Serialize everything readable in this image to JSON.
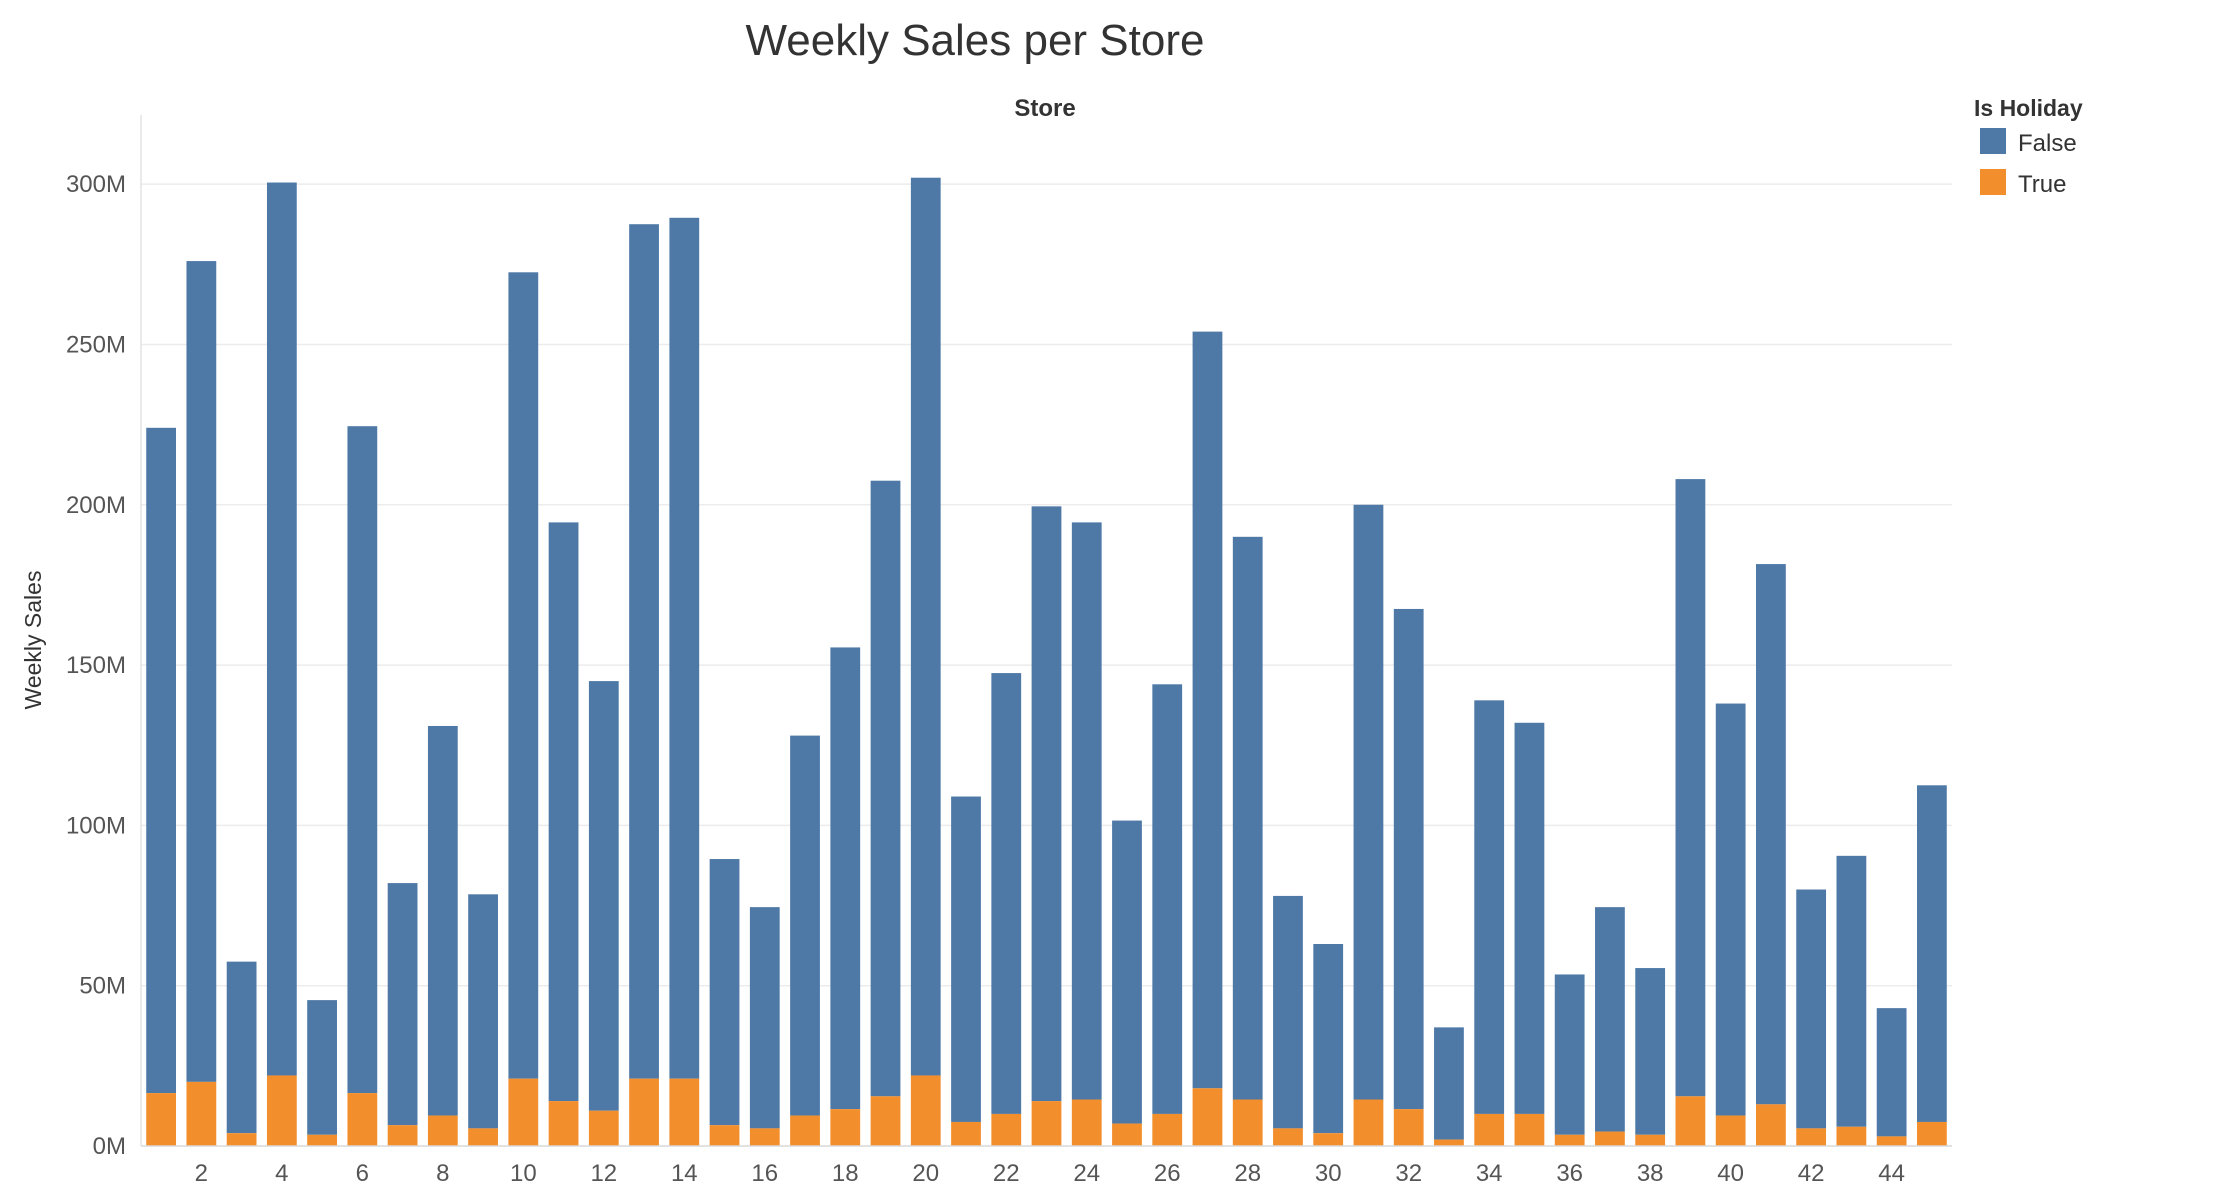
{
  "chart_data": {
    "type": "bar",
    "stacked": true,
    "title": "Weekly Sales per Store",
    "column_header": "Store",
    "ylabel": "Weekly Sales",
    "ylim": [
      0,
      320000000
    ],
    "yticks": [
      0,
      50000000,
      100000000,
      150000000,
      200000000,
      250000000,
      300000000
    ],
    "ytick_labels": [
      "0M",
      "50M",
      "100M",
      "150M",
      "200M",
      "250M",
      "300M"
    ],
    "grid": true,
    "legend": {
      "title": "Is Holiday",
      "placement": "top-right",
      "entries": [
        {
          "label": "False",
          "color": "#4e79a7"
        },
        {
          "label": "True",
          "color": "#f28e2b"
        }
      ]
    },
    "categories": [
      1,
      2,
      3,
      4,
      5,
      6,
      7,
      8,
      9,
      10,
      11,
      12,
      13,
      14,
      15,
      16,
      17,
      18,
      19,
      20,
      21,
      22,
      23,
      24,
      25,
      26,
      27,
      28,
      29,
      30,
      31,
      32,
      33,
      34,
      35,
      36,
      37,
      38,
      39,
      40,
      41,
      42,
      43,
      44,
      45
    ],
    "x_tick_labels": [
      {
        "store": 2,
        "label": "2"
      },
      {
        "store": 4,
        "label": "4"
      },
      {
        "store": 6,
        "label": "6"
      },
      {
        "store": 8,
        "label": "8"
      },
      {
        "store": 10,
        "label": "10"
      },
      {
        "store": 12,
        "label": "12"
      },
      {
        "store": 14,
        "label": "14"
      },
      {
        "store": 16,
        "label": "16"
      },
      {
        "store": 18,
        "label": "18"
      },
      {
        "store": 20,
        "label": "20"
      },
      {
        "store": 22,
        "label": "22"
      },
      {
        "store": 24,
        "label": "24"
      },
      {
        "store": 26,
        "label": "26"
      },
      {
        "store": 28,
        "label": "28"
      },
      {
        "store": 30,
        "label": "30"
      },
      {
        "store": 32,
        "label": "32"
      },
      {
        "store": 34,
        "label": "34"
      },
      {
        "store": 36,
        "label": "36"
      },
      {
        "store": 38,
        "label": "38"
      },
      {
        "store": 40,
        "label": "40"
      },
      {
        "store": 42,
        "label": "42"
      },
      {
        "store": 44,
        "label": "44"
      }
    ],
    "series": [
      {
        "name": "True",
        "color": "#f28e2b",
        "values": [
          16500000,
          20000000,
          4000000,
          22000000,
          3500000,
          16500000,
          6500000,
          9500000,
          5500000,
          21000000,
          14000000,
          11000000,
          21000000,
          21000000,
          6500000,
          5500000,
          9500000,
          11500000,
          15500000,
          22000000,
          7500000,
          10000000,
          14000000,
          14500000,
          7000000,
          10000000,
          18000000,
          14500000,
          5500000,
          4000000,
          14500000,
          11500000,
          2000000,
          10000000,
          10000000,
          3500000,
          4500000,
          3500000,
          15500000,
          9500000,
          13000000,
          5500000,
          6000000,
          3000000,
          7500000
        ]
      },
      {
        "name": "False",
        "color": "#4e79a7",
        "values": [
          207500000,
          256000000,
          53500000,
          278500000,
          42000000,
          208000000,
          75500000,
          121500000,
          73000000,
          251500000,
          180500000,
          134000000,
          266500000,
          268500000,
          83000000,
          69000000,
          118500000,
          144000000,
          192000000,
          280000000,
          101500000,
          137500000,
          185500000,
          180000000,
          94500000,
          134000000,
          236000000,
          175500000,
          72500000,
          59000000,
          185500000,
          156000000,
          35000000,
          129000000,
          122000000,
          50000000,
          70000000,
          52000000,
          192500000,
          128500000,
          168500000,
          74500000,
          84500000,
          40000000,
          105000000
        ]
      }
    ]
  }
}
